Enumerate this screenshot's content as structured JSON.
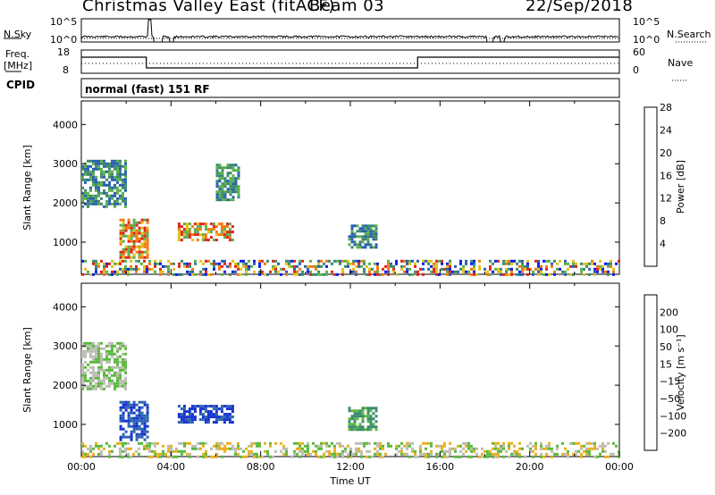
{
  "header": {
    "station": "Christmas Valley East (fitACF)",
    "beam": "Beam 03",
    "date": "22/Sep/2018"
  },
  "panels": {
    "noise": {
      "left_label": "N.Sky",
      "right_label": "N.Search",
      "left_ticks": [
        "10^5",
        "10^0"
      ],
      "right_ticks": [
        "10^5",
        "10^0"
      ]
    },
    "freq": {
      "left_label": "Freq.",
      "left_unit": "[MHz]",
      "left_ticks": [
        "18",
        "8"
      ],
      "right_label": "Nave",
      "right_ticks": [
        "60",
        "0"
      ]
    },
    "cpid": {
      "label": "CPID",
      "text": "normal (fast) 151 RF"
    }
  },
  "chart_data": [
    {
      "type": "heatmap",
      "name": "power",
      "ylabel": "Slant Range [km]",
      "xlabel": "",
      "xlim": [
        "00:00",
        "24:00"
      ],
      "ylim": [
        180,
        4600
      ],
      "y_ticks": [
        1000,
        2000,
        3000,
        4000
      ],
      "colorbar": {
        "label": "Power [dB]",
        "ticks": [
          4,
          8,
          12,
          16,
          20,
          24,
          28
        ],
        "colors": [
          "#0b1ee8",
          "#2a5fb0",
          "#3d8a6e",
          "#5ab04c",
          "#e0c21a",
          "#f07a12",
          "#e2231a"
        ]
      },
      "echo_regions": [
        {
          "t_start": 0.0,
          "t_end": 2.0,
          "range_start": 1900,
          "range_end": 3100,
          "level": "12-16 dB"
        },
        {
          "t_start": 1.7,
          "t_end": 3.0,
          "range_start": 600,
          "range_end": 1600,
          "level": "16-28 dB"
        },
        {
          "t_start": 4.3,
          "t_end": 6.8,
          "range_start": 1050,
          "range_end": 1500,
          "level": "16-28 dB"
        },
        {
          "t_start": 6.0,
          "t_end": 7.0,
          "range_start": 2100,
          "range_end": 3000,
          "level": "12-16 dB"
        },
        {
          "t_start": 11.9,
          "t_end": 13.1,
          "range_start": 900,
          "range_end": 1450,
          "level": "12-16 dB"
        },
        {
          "t_start": 0.0,
          "t_end": 24.0,
          "range_start": 180,
          "range_end": 550,
          "level": "4-28 dB"
        }
      ]
    },
    {
      "type": "heatmap",
      "name": "velocity",
      "ylabel": "Slant Range [km]",
      "xlabel": "Time UT",
      "x_ticks": [
        "00:00",
        "04:00",
        "08:00",
        "12:00",
        "16:00",
        "20:00",
        "00:00"
      ],
      "ylim": [
        180,
        4600
      ],
      "y_ticks": [
        1000,
        2000,
        3000,
        4000
      ],
      "colorbar": {
        "label": "Velocity [m s⁻¹]",
        "ticks": [
          "200",
          "100",
          "50",
          "15",
          "−15",
          "−50",
          "−100",
          "−200"
        ],
        "colors": [
          "#1430d0",
          "#2b64b0",
          "#3b8a6e",
          "#5aba3e",
          "#bdbdb4",
          "#e8b020",
          "#f07a12",
          "#f03a14",
          "#e2121a"
        ]
      },
      "echo_regions": [
        {
          "t_start": 0.0,
          "t_end": 2.0,
          "range_start": 1900,
          "range_end": 3100,
          "velocity": "-15 to 15"
        },
        {
          "t_start": 1.7,
          "t_end": 3.0,
          "range_start": 600,
          "range_end": 1600,
          "velocity": "100 to 200"
        },
        {
          "t_start": 4.3,
          "t_end": 6.8,
          "range_start": 1050,
          "range_end": 1500,
          "velocity": "100 to 200"
        },
        {
          "t_start": 11.9,
          "t_end": 13.1,
          "range_start": 900,
          "range_end": 1450,
          "velocity": "15 to 50"
        },
        {
          "t_start": 0.0,
          "t_end": 24.0,
          "range_start": 180,
          "range_end": 550,
          "velocity": "-50 to 50"
        }
      ]
    }
  ]
}
